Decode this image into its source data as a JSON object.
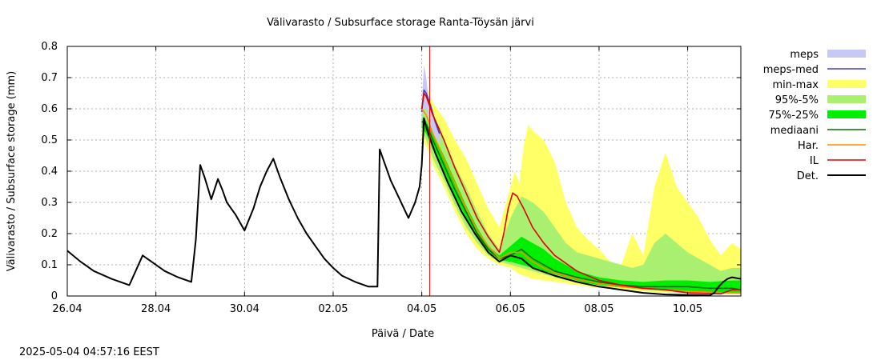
{
  "chart_data": {
    "type": "line",
    "title": "Välivarasto / Subsurface storage  Ranta-Töysän järvi",
    "xlabel": "Päivä / Date",
    "ylabel": "Välivarasto / Subsurface storage (mm)",
    "timestamp": "2025-05-04 04:57:16 EEST",
    "xlim": [
      0,
      15.2
    ],
    "ylim": [
      0,
      0.8
    ],
    "x_ticks": [
      {
        "x": 0,
        "label": "26.04"
      },
      {
        "x": 2,
        "label": "28.04"
      },
      {
        "x": 4,
        "label": "30.04"
      },
      {
        "x": 6,
        "label": "02.05"
      },
      {
        "x": 8,
        "label": "04.05"
      },
      {
        "x": 10,
        "label": "06.05"
      },
      {
        "x": 12,
        "label": "08.05"
      },
      {
        "x": 14,
        "label": "10.05"
      }
    ],
    "y_ticks": [
      {
        "y": 0,
        "label": "0"
      },
      {
        "y": 0.1,
        "label": "0.1"
      },
      {
        "y": 0.2,
        "label": "0.2"
      },
      {
        "y": 0.3,
        "label": "0.3"
      },
      {
        "y": 0.4,
        "label": "0.4"
      },
      {
        "y": 0.5,
        "label": "0.5"
      },
      {
        "y": 0.6,
        "label": "0.6"
      },
      {
        "y": 0.7,
        "label": "0.7"
      },
      {
        "y": 0.8,
        "label": "0.8"
      }
    ],
    "grid": true,
    "forecast_start_x": 8.18,
    "legend": [
      {
        "label": "meps",
        "color": "#c8c8f5",
        "kind": "band"
      },
      {
        "label": "meps-med",
        "color": "#4040c0",
        "kind": "line"
      },
      {
        "label": "min-max",
        "color": "#ffff66",
        "kind": "band"
      },
      {
        "label": "95%-5%",
        "color": "#aaf070",
        "kind": "band"
      },
      {
        "label": "75%-25%",
        "color": "#00ee00",
        "kind": "band"
      },
      {
        "label": "mediaani",
        "color": "#007000",
        "kind": "line"
      },
      {
        "label": "Har.",
        "color": "#ff8c00",
        "kind": "line"
      },
      {
        "label": "IL",
        "color": "#e00000",
        "kind": "line"
      },
      {
        "label": "Det.",
        "color": "#000000",
        "kind": "line"
      }
    ],
    "bands": {
      "meps": {
        "x": [
          8.0,
          8.05,
          8.1,
          8.15,
          8.25,
          8.4
        ],
        "upper": [
          0.62,
          0.74,
          0.7,
          0.64,
          0.58,
          0.54
        ],
        "lower": [
          0.55,
          0.6,
          0.6,
          0.57,
          0.52,
          0.49
        ]
      },
      "min-max": {
        "x": [
          8.0,
          8.1,
          8.25,
          8.5,
          8.75,
          9.0,
          9.25,
          9.5,
          9.75,
          10.0,
          10.1,
          10.2,
          10.3,
          10.4,
          10.5,
          10.75,
          11.0,
          11.25,
          11.5,
          11.75,
          12.0,
          12.25,
          12.5,
          12.75,
          13.0,
          13.25,
          13.5,
          13.75,
          14.0,
          14.25,
          14.5,
          14.75,
          15.0,
          15.2
        ],
        "upper": [
          0.62,
          0.67,
          0.62,
          0.57,
          0.5,
          0.44,
          0.36,
          0.28,
          0.22,
          0.35,
          0.4,
          0.36,
          0.48,
          0.55,
          0.53,
          0.5,
          0.43,
          0.3,
          0.22,
          0.18,
          0.15,
          0.11,
          0.1,
          0.2,
          0.13,
          0.35,
          0.46,
          0.35,
          0.3,
          0.25,
          0.18,
          0.13,
          0.17,
          0.15
        ],
        "lower": [
          0.5,
          0.48,
          0.42,
          0.35,
          0.27,
          0.2,
          0.15,
          0.12,
          0.1,
          0.09,
          0.08,
          0.07,
          0.065,
          0.06,
          0.055,
          0.05,
          0.045,
          0.04,
          0.035,
          0.03,
          0.027,
          0.024,
          0.021,
          0.018,
          0.015,
          0.013,
          0.011,
          0.01,
          0.009,
          0.008,
          0.007,
          0.006,
          0.005,
          0.005
        ]
      },
      "95%-5%": {
        "x": [
          8.0,
          8.1,
          8.25,
          8.5,
          8.75,
          9.0,
          9.25,
          9.5,
          9.75,
          10.0,
          10.25,
          10.5,
          10.75,
          11.0,
          11.25,
          11.5,
          11.75,
          12.0,
          12.25,
          12.5,
          12.75,
          13.0,
          13.25,
          13.5,
          13.75,
          14.0,
          14.25,
          14.5,
          14.75,
          15.0,
          15.2
        ],
        "upper": [
          0.6,
          0.6,
          0.56,
          0.5,
          0.42,
          0.35,
          0.27,
          0.2,
          0.15,
          0.25,
          0.32,
          0.3,
          0.27,
          0.22,
          0.17,
          0.14,
          0.13,
          0.12,
          0.11,
          0.1,
          0.09,
          0.1,
          0.17,
          0.2,
          0.17,
          0.14,
          0.12,
          0.1,
          0.08,
          0.09,
          0.09
        ],
        "lower": [
          0.53,
          0.5,
          0.44,
          0.37,
          0.29,
          0.22,
          0.17,
          0.13,
          0.11,
          0.1,
          0.09,
          0.08,
          0.07,
          0.06,
          0.05,
          0.045,
          0.04,
          0.035,
          0.03,
          0.027,
          0.023,
          0.02,
          0.017,
          0.015,
          0.013,
          0.011,
          0.01,
          0.009,
          0.008,
          0.007,
          0.007
        ]
      },
      "75%-25%": {
        "x": [
          8.0,
          8.1,
          8.25,
          8.5,
          8.75,
          9.0,
          9.25,
          9.5,
          9.75,
          10.0,
          10.25,
          10.5,
          10.75,
          11.0,
          11.25,
          11.5,
          11.75,
          12.0,
          12.5,
          13.0,
          13.5,
          14.0,
          14.5,
          15.0,
          15.2
        ],
        "upper": [
          0.58,
          0.56,
          0.52,
          0.45,
          0.37,
          0.29,
          0.22,
          0.16,
          0.13,
          0.16,
          0.19,
          0.17,
          0.15,
          0.12,
          0.1,
          0.08,
          0.07,
          0.06,
          0.05,
          0.045,
          0.05,
          0.05,
          0.045,
          0.05,
          0.05
        ],
        "lower": [
          0.54,
          0.52,
          0.47,
          0.4,
          0.32,
          0.25,
          0.19,
          0.14,
          0.115,
          0.11,
          0.1,
          0.09,
          0.08,
          0.07,
          0.06,
          0.05,
          0.04,
          0.035,
          0.028,
          0.022,
          0.018,
          0.015,
          0.012,
          0.01,
          0.01
        ]
      }
    },
    "series": [
      {
        "name": "meps-med",
        "color": "#4040c0",
        "x": [
          8.0,
          8.05,
          8.1,
          8.2,
          8.3,
          8.4
        ],
        "y": [
          0.59,
          0.66,
          0.65,
          0.61,
          0.56,
          0.52
        ]
      },
      {
        "name": "mediaani",
        "color": "#007000",
        "x": [
          8.0,
          8.1,
          8.25,
          8.5,
          8.75,
          9.0,
          9.25,
          9.5,
          9.75,
          10.0,
          10.25,
          10.5,
          10.75,
          11.0,
          11.5,
          12.0,
          12.5,
          13.0,
          13.5,
          14.0,
          14.5,
          15.0,
          15.2
        ],
        "y": [
          0.56,
          0.55,
          0.5,
          0.42,
          0.34,
          0.27,
          0.2,
          0.15,
          0.12,
          0.13,
          0.15,
          0.12,
          0.1,
          0.08,
          0.06,
          0.045,
          0.035,
          0.03,
          0.03,
          0.03,
          0.025,
          0.025,
          0.02
        ]
      },
      {
        "name": "Har.",
        "color": "#ff8c00",
        "x": [
          8.0,
          8.1,
          8.25,
          8.5,
          8.75,
          9.0,
          9.25,
          9.5,
          9.75,
          10.0,
          10.25,
          10.5,
          10.75,
          11.0,
          11.5,
          12.0,
          12.5,
          13.0,
          13.5,
          14.0,
          14.5,
          15.0,
          15.2
        ],
        "y": [
          0.6,
          0.58,
          0.52,
          0.44,
          0.36,
          0.28,
          0.21,
          0.16,
          0.12,
          0.14,
          0.14,
          0.11,
          0.09,
          0.075,
          0.055,
          0.04,
          0.03,
          0.025,
          0.02,
          0.015,
          0.012,
          0.01,
          0.01
        ]
      },
      {
        "name": "IL",
        "color": "#e00000",
        "x": [
          8.0,
          8.05,
          8.1,
          8.25,
          8.5,
          8.75,
          9.0,
          9.25,
          9.5,
          9.75,
          9.85,
          9.95,
          10.05,
          10.15,
          10.3,
          10.5,
          10.75,
          11.0,
          11.5,
          12.0,
          12.5,
          13.0,
          13.5,
          14.0,
          14.5,
          14.75,
          15.0,
          15.2
        ],
        "y": [
          0.6,
          0.65,
          0.64,
          0.58,
          0.5,
          0.41,
          0.33,
          0.25,
          0.19,
          0.14,
          0.2,
          0.28,
          0.33,
          0.32,
          0.28,
          0.22,
          0.17,
          0.13,
          0.08,
          0.05,
          0.035,
          0.025,
          0.02,
          0.01,
          0.008,
          0.007,
          0.02,
          0.02
        ]
      },
      {
        "name": "Det.",
        "color": "#000000",
        "x": [
          0,
          0.3,
          0.6,
          1.0,
          1.4,
          1.7,
          1.9,
          2.2,
          2.5,
          2.8,
          2.9,
          3.0,
          3.1,
          3.25,
          3.4,
          3.5,
          3.6,
          3.8,
          4.0,
          4.2,
          4.35,
          4.5,
          4.65,
          4.8,
          5.0,
          5.2,
          5.4,
          5.6,
          5.8,
          6.0,
          6.2,
          6.5,
          6.8,
          7.0,
          7.05,
          7.15,
          7.3,
          7.5,
          7.7,
          7.85,
          7.95,
          8.0,
          8.05,
          8.1,
          8.3,
          8.6,
          8.9,
          9.2,
          9.5,
          9.75,
          10.0,
          10.25,
          10.5,
          11.0,
          11.5,
          12.0,
          12.5,
          13.0,
          13.5,
          14.0,
          14.5,
          14.6,
          14.7,
          14.8,
          14.9,
          15.0,
          15.2
        ],
        "y": [
          0.145,
          0.11,
          0.08,
          0.055,
          0.035,
          0.13,
          0.11,
          0.08,
          0.06,
          0.045,
          0.18,
          0.42,
          0.38,
          0.31,
          0.375,
          0.34,
          0.3,
          0.26,
          0.21,
          0.28,
          0.35,
          0.4,
          0.44,
          0.38,
          0.31,
          0.25,
          0.2,
          0.16,
          0.12,
          0.09,
          0.065,
          0.045,
          0.03,
          0.03,
          0.47,
          0.43,
          0.37,
          0.31,
          0.25,
          0.3,
          0.35,
          0.42,
          0.57,
          0.54,
          0.46,
          0.36,
          0.27,
          0.2,
          0.14,
          0.11,
          0.13,
          0.12,
          0.09,
          0.065,
          0.045,
          0.03,
          0.02,
          0.01,
          0.005,
          0.003,
          0.002,
          0.01,
          0.03,
          0.045,
          0.055,
          0.06,
          0.055
        ]
      }
    ]
  }
}
